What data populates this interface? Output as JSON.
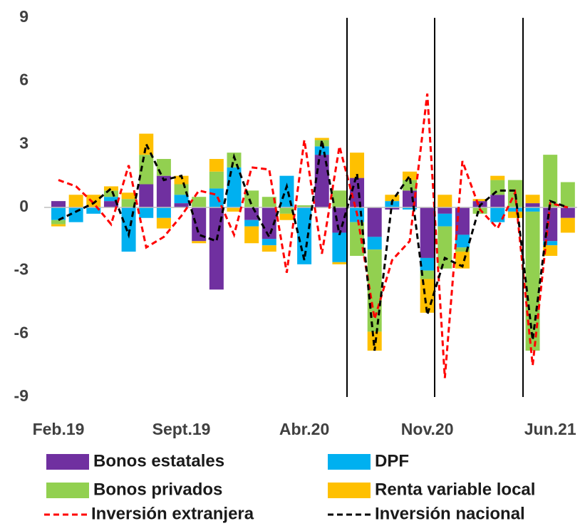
{
  "chart_data": {
    "type": "bar",
    "stacked": true,
    "categories": [
      "Feb.19",
      null,
      null,
      null,
      null,
      null,
      null,
      "Sept.19",
      null,
      null,
      null,
      null,
      null,
      null,
      "Abr.20",
      null,
      null,
      null,
      null,
      null,
      null,
      "Nov.20",
      null,
      null,
      null,
      null,
      null,
      null,
      "Jun.21",
      null
    ],
    "ylim": [
      -9,
      9
    ],
    "yticks": [
      -9,
      -6,
      -3,
      0,
      3,
      6,
      9
    ],
    "grid": false,
    "series": [
      {
        "name": "Bonos estatales",
        "type": "bar",
        "color": "#7030a0",
        "values": [
          0.3,
          0,
          0,
          0.3,
          0,
          1.1,
          1.5,
          0.2,
          -1.6,
          -3.9,
          0,
          -0.6,
          -1.5,
          0,
          0,
          2.5,
          -1.2,
          1.4,
          -1.4,
          -0.1,
          0.8,
          -2.4,
          -0.3,
          -1.3,
          0.3,
          0.6,
          0,
          0.2,
          -1.6,
          -0.5
        ]
      },
      {
        "name": "DPF",
        "type": "bar",
        "color": "#00b0f0",
        "values": [
          -0.6,
          -0.7,
          -0.3,
          0.2,
          -2.1,
          -0.5,
          -0.5,
          0.4,
          0,
          0.9,
          1.9,
          -0.3,
          -0.3,
          1.5,
          -2.7,
          0.4,
          -1.4,
          -0.7,
          -0.6,
          0.3,
          -0.1,
          -0.6,
          -0.6,
          -0.6,
          0,
          -0.7,
          -0.2,
          -0.2,
          -0.2,
          0
        ]
      },
      {
        "name": "Bonos privados",
        "type": "bar",
        "color": "#92d050",
        "values": [
          -0.2,
          0,
          0,
          0.3,
          0.4,
          1.4,
          0.8,
          0.5,
          0.5,
          0.8,
          0.7,
          0.8,
          0.5,
          -0.3,
          0.1,
          0.3,
          0.8,
          -1.6,
          -3.9,
          0,
          0.5,
          -0.4,
          -2.0,
          -0.2,
          -0.3,
          0.7,
          1.3,
          -6.6,
          2.5,
          1.2
        ]
      },
      {
        "name": "Renta variable local",
        "type": "bar",
        "color": "#ffc000",
        "values": [
          -0.1,
          0.6,
          0.6,
          0.2,
          0.3,
          1.0,
          -0.5,
          0.4,
          -0.1,
          0.6,
          -0.2,
          -0.8,
          -0.3,
          -0.3,
          0,
          0.1,
          -0.1,
          1.2,
          -0.9,
          0.3,
          0.4,
          -1.6,
          0.6,
          -0.8,
          0.1,
          0.2,
          -0.3,
          0.4,
          -0.5,
          -0.7
        ]
      },
      {
        "name": "Inversión extranjera",
        "type": "line",
        "line_style": "dashed",
        "color": "#ff0000",
        "values": [
          1.3,
          1.0,
          0.2,
          -0.8,
          2.0,
          -1.9,
          -1.4,
          -0.4,
          0.8,
          0.6,
          -1.3,
          1.9,
          1.8,
          -3.1,
          3.2,
          -2.2,
          2.9,
          -0.3,
          -5.3,
          -2.5,
          -1.6,
          5.4,
          -8.1,
          2.2,
          -0.1,
          -1.0,
          0.7,
          -7.5,
          0.2,
          0
        ]
      },
      {
        "name": "Inversión nacional",
        "type": "line",
        "line_style": "dashed",
        "color": "#000000",
        "values": [
          -0.6,
          -0.2,
          0.2,
          0.9,
          -1.3,
          3.0,
          1.3,
          1.5,
          -1.3,
          -1.6,
          2.4,
          0.1,
          -1.4,
          1.0,
          -2.5,
          3.2,
          -1.3,
          1.6,
          -6.8,
          0.3,
          1.5,
          -5.1,
          -2.4,
          -2.8,
          0.1,
          0.8,
          0.8,
          -6.3,
          0.3,
          0
        ]
      }
    ]
  }
}
